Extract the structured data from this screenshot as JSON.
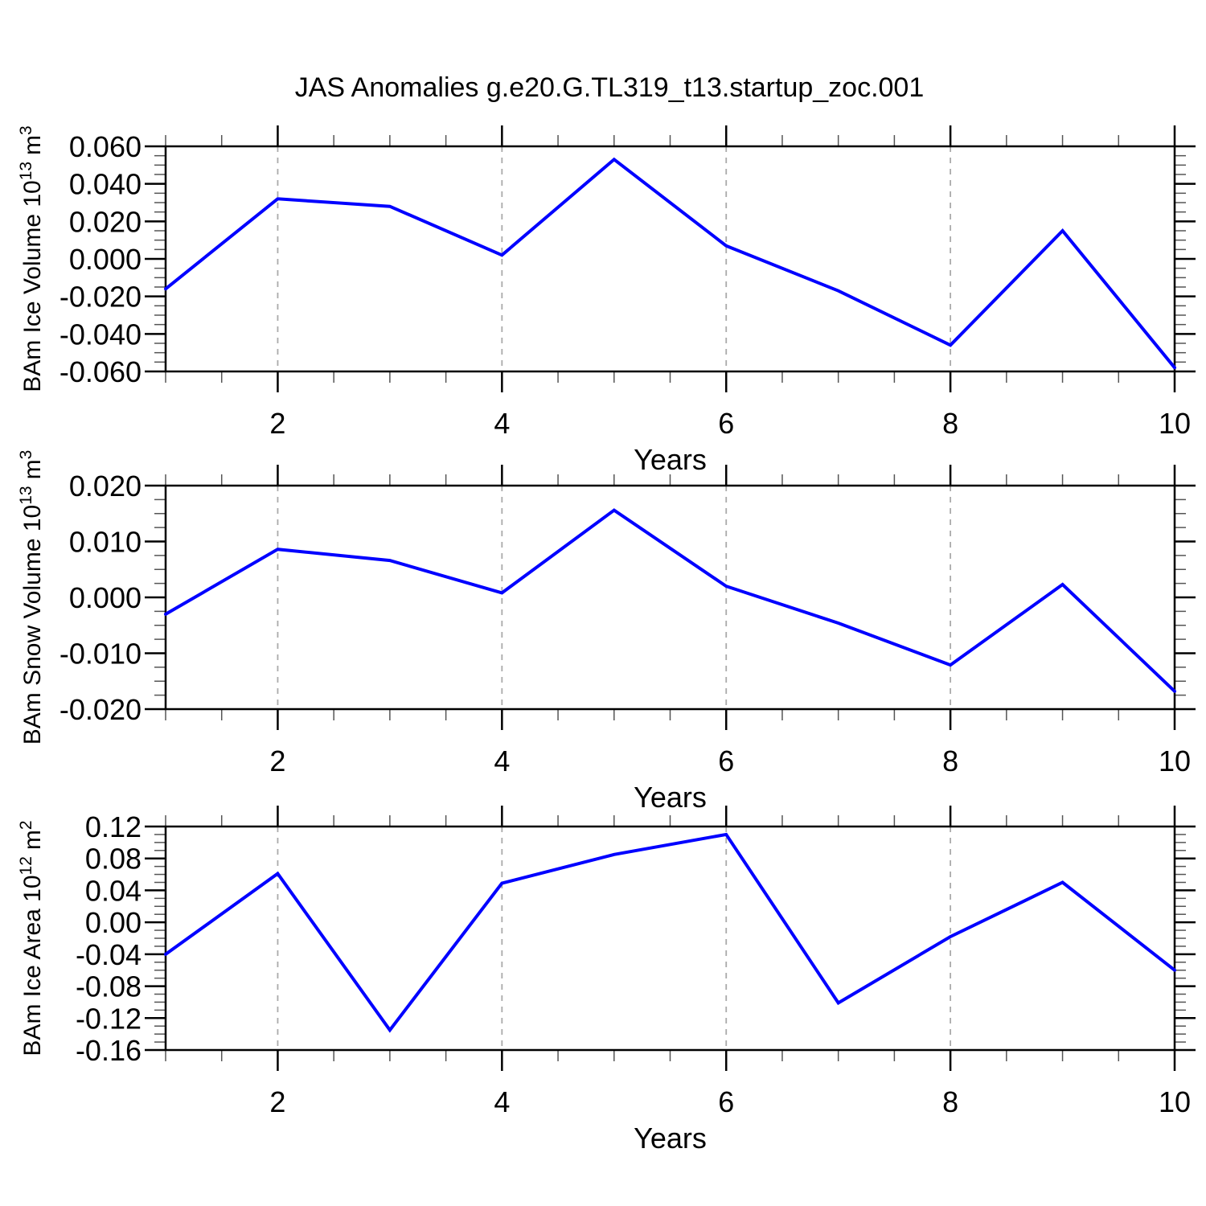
{
  "title": "JAS Anomalies g.e20.G.TL319_t13.startup_zoc.001",
  "colors": {
    "line": "#0000ff",
    "grid": "#aaaaaa",
    "axis": "#000000",
    "minor_tick": "#555555",
    "text": "#000000"
  },
  "chart_data": [
    {
      "type": "line",
      "panel": 1,
      "ylabel_parts": {
        "prefix": "BAm Ice Volume 10",
        "sup1": "13",
        "mid": "m",
        "sup2": "3"
      },
      "xlabel": "Years",
      "x": [
        1,
        2,
        3,
        4,
        5,
        6,
        7,
        8,
        9,
        10
      ],
      "values": [
        -0.016,
        0.032,
        0.028,
        0.002,
        0.053,
        0.007,
        -0.017,
        -0.046,
        0.015,
        -0.058
      ],
      "xlim": [
        1,
        10
      ],
      "ylim": [
        -0.06,
        0.06
      ],
      "ytick_values": [
        0.06,
        0.04,
        0.02,
        0,
        -0.02,
        -0.04,
        -0.06
      ],
      "ytick_labels": [
        "0.060",
        "0.040",
        "0.020",
        "0.000",
        "-0.020",
        "-0.040",
        "-0.060"
      ],
      "ytick_minor_step": 0.005,
      "xtick_values": [
        2,
        4,
        6,
        8,
        10
      ],
      "xtick_labels": [
        "2",
        "4",
        "6",
        "8",
        "10"
      ],
      "xtick_minor_step": 0.5,
      "grid_x": [
        2,
        4,
        6,
        8
      ],
      "grid_on": "vertical-dashed"
    },
    {
      "type": "line",
      "panel": 2,
      "ylabel_parts": {
        "prefix": "BAm Snow Volume 10",
        "sup1": "13",
        "mid": "m",
        "sup2": "3"
      },
      "xlabel": "Years",
      "x": [
        1,
        2,
        3,
        4,
        5,
        6,
        7,
        8,
        9,
        10
      ],
      "values": [
        -0.003,
        0.0086,
        0.0066,
        0.0008,
        0.0156,
        0.002,
        -0.0046,
        -0.0121,
        0.0023,
        -0.0168
      ],
      "xlim": [
        1,
        10
      ],
      "ylim": [
        -0.02,
        0.02
      ],
      "ytick_values": [
        0.02,
        0.01,
        0,
        -0.01,
        -0.02
      ],
      "ytick_labels": [
        "0.020",
        "0.010",
        "0.000",
        "-0.010",
        "-0.020"
      ],
      "ytick_minor_step": 0.0025,
      "xtick_values": [
        2,
        4,
        6,
        8,
        10
      ],
      "xtick_labels": [
        "2",
        "4",
        "6",
        "8",
        "10"
      ],
      "xtick_minor_step": 0.5,
      "grid_x": [
        2,
        4,
        6,
        8
      ],
      "grid_on": "vertical-dashed"
    },
    {
      "type": "line",
      "panel": 3,
      "ylabel_parts": {
        "prefix": "BAm Ice Area 10",
        "sup1": "12",
        "mid": "m",
        "sup2": "2"
      },
      "xlabel": "Years",
      "x": [
        1,
        2,
        3,
        4,
        5,
        6,
        7,
        8,
        9,
        10
      ],
      "values": [
        -0.04,
        0.061,
        -0.135,
        0.049,
        0.085,
        0.11,
        -0.101,
        -0.018,
        0.05,
        -0.06
      ],
      "xlim": [
        1,
        10
      ],
      "ylim": [
        -0.16,
        0.12
      ],
      "ytick_values": [
        0.12,
        0.08,
        0.04,
        0,
        -0.04,
        -0.08,
        -0.12,
        -0.16
      ],
      "ytick_labels": [
        "0.12",
        "0.08",
        "0.04",
        "0.00",
        "-0.04",
        "-0.08",
        "-0.12",
        "-0.16"
      ],
      "ytick_minor_step": 0.01,
      "xtick_values": [
        2,
        4,
        6,
        8,
        10
      ],
      "xtick_labels": [
        "2",
        "4",
        "6",
        "8",
        "10"
      ],
      "xtick_minor_step": 0.5,
      "grid_x": [
        2,
        4,
        6,
        8
      ],
      "grid_on": "vertical-dashed"
    }
  ]
}
